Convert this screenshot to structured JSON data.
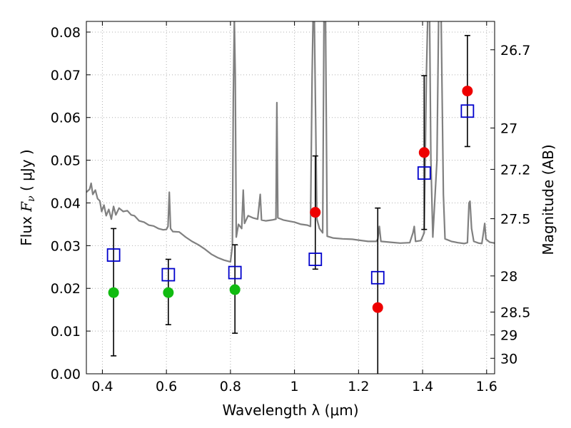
{
  "chart_data": {
    "type": "scatter",
    "title": "",
    "xlabel": "Wavelength  λ (μm)",
    "ylabel": "Flux  F_ν  ( μJy )",
    "ylabel_right": "Magnitude (AB)",
    "xlim": [
      0.35,
      1.625
    ],
    "ylim": [
      0,
      0.0825
    ],
    "grid": true,
    "x_ticks": [
      {
        "value": 0.4,
        "label": "0.4"
      },
      {
        "value": 0.6,
        "label": "0.6"
      },
      {
        "value": 0.8,
        "label": "0.8"
      },
      {
        "value": 1.0,
        "label": "1"
      },
      {
        "value": 1.2,
        "label": "1.2"
      },
      {
        "value": 1.4,
        "label": "1.4"
      },
      {
        "value": 1.6,
        "label": "1.6"
      }
    ],
    "y_ticks": [
      {
        "value": 0.0,
        "label": "0.00"
      },
      {
        "value": 0.01,
        "label": "0.01"
      },
      {
        "value": 0.02,
        "label": "0.02"
      },
      {
        "value": 0.03,
        "label": "0.03"
      },
      {
        "value": 0.04,
        "label": "0.04"
      },
      {
        "value": 0.05,
        "label": "0.05"
      },
      {
        "value": 0.06,
        "label": "0.06"
      },
      {
        "value": 0.07,
        "label": "0.07"
      },
      {
        "value": 0.08,
        "label": "0.08"
      }
    ],
    "right_ticks": [
      {
        "mag": 26.7,
        "label": "26.7"
      },
      {
        "mag": 27.0,
        "label": "27"
      },
      {
        "mag": 27.2,
        "label": "27.2"
      },
      {
        "mag": 27.5,
        "label": "27.5"
      },
      {
        "mag": 28.0,
        "label": "28"
      },
      {
        "mag": 28.5,
        "label": "28.5"
      },
      {
        "mag": 29.0,
        "label": "29"
      },
      {
        "mag": 30.0,
        "label": "30"
      }
    ],
    "colors": {
      "model": "#808080",
      "observed_detection": "#ee0000",
      "observed_upper": "#11bb11",
      "model_photometry": "#0000cc",
      "errorbar": "#000000",
      "grid": "#b0b0b0"
    },
    "observed": [
      {
        "x": 0.435,
        "y": 0.019,
        "err_low": 0.0042,
        "err_high": 0.034,
        "color": "green"
      },
      {
        "x": 0.606,
        "y": 0.019,
        "err_low": 0.0115,
        "err_high": 0.0268,
        "color": "green"
      },
      {
        "x": 0.814,
        "y": 0.0197,
        "err_low": 0.0095,
        "err_high": 0.0302,
        "color": "green"
      },
      {
        "x": 1.065,
        "y": 0.0378,
        "err_low": 0.0245,
        "err_high": 0.051,
        "color": "red"
      },
      {
        "x": 1.26,
        "y": 0.0155,
        "err_low": 0.0,
        "err_high": 0.0388,
        "color": "red"
      },
      {
        "x": 1.405,
        "y": 0.0518,
        "err_low": 0.0338,
        "err_high": 0.0698,
        "color": "red"
      },
      {
        "x": 1.54,
        "y": 0.0662,
        "err_low": 0.0532,
        "err_high": 0.0792,
        "color": "red"
      }
    ],
    "model_photometry": [
      {
        "x": 0.435,
        "y": 0.0278
      },
      {
        "x": 0.606,
        "y": 0.0232
      },
      {
        "x": 0.814,
        "y": 0.0237
      },
      {
        "x": 1.065,
        "y": 0.0268
      },
      {
        "x": 1.26,
        "y": 0.0225
      },
      {
        "x": 1.405,
        "y": 0.047
      },
      {
        "x": 1.54,
        "y": 0.0615
      }
    ],
    "model_spectrum": [
      [
        0.35,
        0.0425
      ],
      [
        0.36,
        0.0432
      ],
      [
        0.365,
        0.0446
      ],
      [
        0.37,
        0.042
      ],
      [
        0.378,
        0.043
      ],
      [
        0.385,
        0.041
      ],
      [
        0.392,
        0.0405
      ],
      [
        0.398,
        0.038
      ],
      [
        0.405,
        0.0395
      ],
      [
        0.412,
        0.037
      ],
      [
        0.42,
        0.0385
      ],
      [
        0.428,
        0.0362
      ],
      [
        0.435,
        0.0392
      ],
      [
        0.442,
        0.0372
      ],
      [
        0.452,
        0.0388
      ],
      [
        0.465,
        0.038
      ],
      [
        0.478,
        0.0382
      ],
      [
        0.49,
        0.0372
      ],
      [
        0.5,
        0.037
      ],
      [
        0.515,
        0.0358
      ],
      [
        0.53,
        0.0355
      ],
      [
        0.545,
        0.0348
      ],
      [
        0.56,
        0.0346
      ],
      [
        0.575,
        0.034
      ],
      [
        0.59,
        0.0337
      ],
      [
        0.6,
        0.0338
      ],
      [
        0.605,
        0.0345
      ],
      [
        0.609,
        0.0425
      ],
      [
        0.613,
        0.034
      ],
      [
        0.62,
        0.0333
      ],
      [
        0.64,
        0.0332
      ],
      [
        0.66,
        0.032
      ],
      [
        0.68,
        0.031
      ],
      [
        0.7,
        0.0302
      ],
      [
        0.72,
        0.0292
      ],
      [
        0.74,
        0.028
      ],
      [
        0.76,
        0.0272
      ],
      [
        0.78,
        0.0266
      ],
      [
        0.8,
        0.0262
      ],
      [
        0.806,
        0.03
      ],
      [
        0.809,
        0.065
      ],
      [
        0.812,
        0.083
      ],
      [
        0.815,
        0.07
      ],
      [
        0.818,
        0.032
      ],
      [
        0.825,
        0.035
      ],
      [
        0.835,
        0.034
      ],
      [
        0.84,
        0.043
      ],
      [
        0.844,
        0.0352
      ],
      [
        0.855,
        0.037
      ],
      [
        0.87,
        0.0365
      ],
      [
        0.885,
        0.0362
      ],
      [
        0.893,
        0.042
      ],
      [
        0.897,
        0.036
      ],
      [
        0.91,
        0.0358
      ],
      [
        0.93,
        0.036
      ],
      [
        0.942,
        0.0362
      ],
      [
        0.945,
        0.0635
      ],
      [
        0.948,
        0.0365
      ],
      [
        0.965,
        0.036
      ],
      [
        0.985,
        0.0357
      ],
      [
        1.0,
        0.0355
      ],
      [
        1.02,
        0.035
      ],
      [
        1.04,
        0.0348
      ],
      [
        1.05,
        0.0345
      ],
      [
        1.055,
        0.07
      ],
      [
        1.058,
        0.083
      ],
      [
        1.062,
        0.083
      ],
      [
        1.066,
        0.06
      ],
      [
        1.07,
        0.0362
      ],
      [
        1.078,
        0.034
      ],
      [
        1.088,
        0.033
      ],
      [
        1.092,
        0.083
      ],
      [
        1.097,
        0.083
      ],
      [
        1.102,
        0.0322
      ],
      [
        1.12,
        0.0318
      ],
      [
        1.15,
        0.0316
      ],
      [
        1.18,
        0.0315
      ],
      [
        1.2,
        0.0313
      ],
      [
        1.23,
        0.031
      ],
      [
        1.255,
        0.031
      ],
      [
        1.26,
        0.0315
      ],
      [
        1.265,
        0.0345
      ],
      [
        1.27,
        0.031
      ],
      [
        1.3,
        0.0308
      ],
      [
        1.33,
        0.0306
      ],
      [
        1.36,
        0.0307
      ],
      [
        1.37,
        0.033
      ],
      [
        1.374,
        0.0345
      ],
      [
        1.378,
        0.031
      ],
      [
        1.395,
        0.0312
      ],
      [
        1.405,
        0.033
      ],
      [
        1.412,
        0.07
      ],
      [
        1.416,
        0.083
      ],
      [
        1.422,
        0.083
      ],
      [
        1.426,
        0.05
      ],
      [
        1.432,
        0.032
      ],
      [
        1.445,
        0.05
      ],
      [
        1.45,
        0.083
      ],
      [
        1.458,
        0.083
      ],
      [
        1.465,
        0.042
      ],
      [
        1.47,
        0.0316
      ],
      [
        1.49,
        0.031
      ],
      [
        1.51,
        0.0307
      ],
      [
        1.53,
        0.0305
      ],
      [
        1.54,
        0.0307
      ],
      [
        1.545,
        0.04
      ],
      [
        1.548,
        0.0404
      ],
      [
        1.553,
        0.034
      ],
      [
        1.56,
        0.031
      ],
      [
        1.575,
        0.0306
      ],
      [
        1.585,
        0.0305
      ],
      [
        1.59,
        0.033
      ],
      [
        1.594,
        0.0352
      ],
      [
        1.598,
        0.0315
      ],
      [
        1.61,
        0.0308
      ],
      [
        1.625,
        0.0306
      ]
    ]
  }
}
